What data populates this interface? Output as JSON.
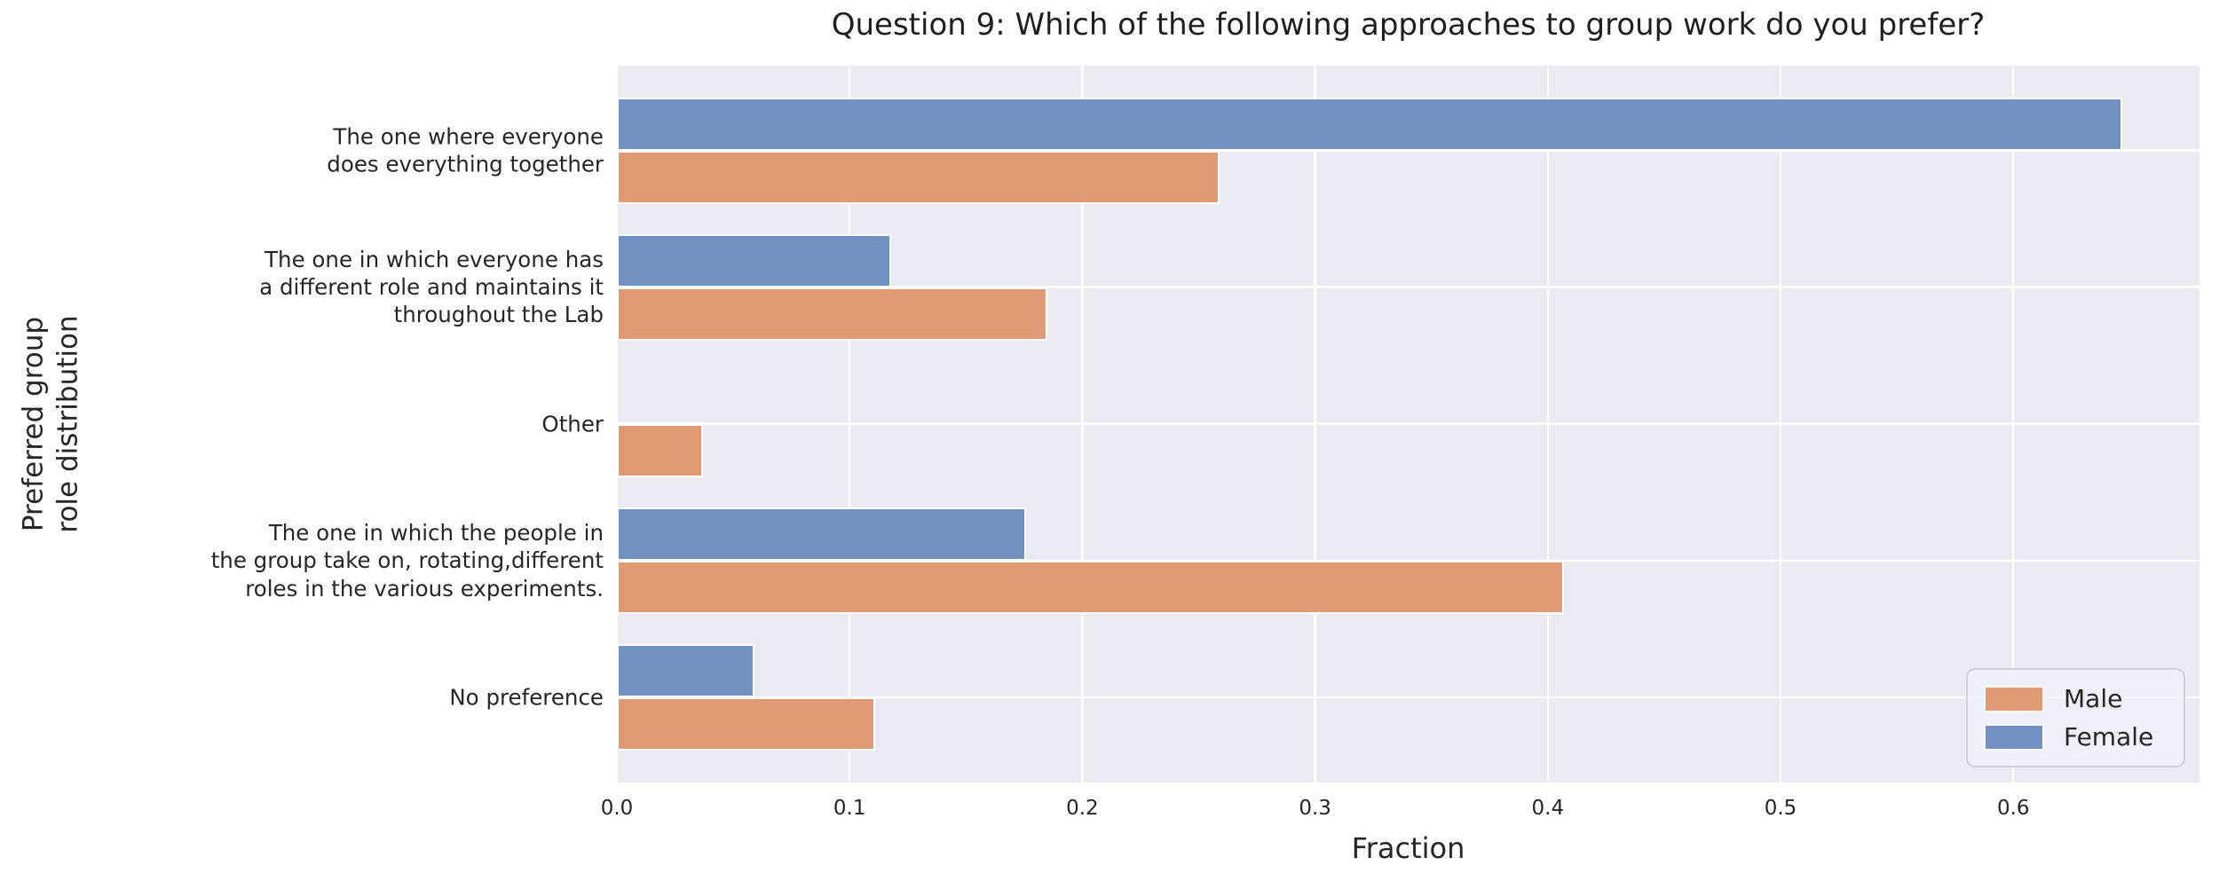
{
  "chart_data": {
    "type": "bar",
    "orientation": "horizontal",
    "title": "Question 9: Which of the following approaches to group work do you prefer?",
    "xlabel": "Fraction",
    "ylabel": "Preferred group\nrole distribution",
    "xlim": [
      0,
      0.68
    ],
    "xticks": [
      {
        "value": 0.0,
        "label": "0.0"
      },
      {
        "value": 0.1,
        "label": "0.1"
      },
      {
        "value": 0.2,
        "label": "0.2"
      },
      {
        "value": 0.3,
        "label": "0.3"
      },
      {
        "value": 0.4,
        "label": "0.4"
      },
      {
        "value": 0.5,
        "label": "0.5"
      },
      {
        "value": 0.6,
        "label": "0.6"
      }
    ],
    "grid": true,
    "legend_position": "lower right",
    "categories": [
      "The one where everyone\ndoes everything together",
      "The one in which everyone has\na different role and maintains it\nthroughout the Lab",
      "Other",
      "The one in which the people in\nthe group take on, rotating,different\nroles in the various experiments.",
      "No preference"
    ],
    "series": [
      {
        "name": "Male",
        "color": "#e09a76",
        "values": [
          0.259,
          0.185,
          0.037,
          0.407,
          0.111
        ]
      },
      {
        "name": "Female",
        "color": "#7192c1",
        "values": [
          0.647,
          0.118,
          0.0,
          0.176,
          0.059
        ]
      }
    ],
    "bar_order_top_to_bottom": [
      "Female",
      "Male"
    ]
  },
  "legend": {
    "items": [
      {
        "label": "Male",
        "color": "#e09a76"
      },
      {
        "label": "Female",
        "color": "#7192c1"
      }
    ]
  },
  "colors": {
    "plot_background": "#eaeaf2",
    "gridline": "#ffffff",
    "text": "#262626"
  }
}
